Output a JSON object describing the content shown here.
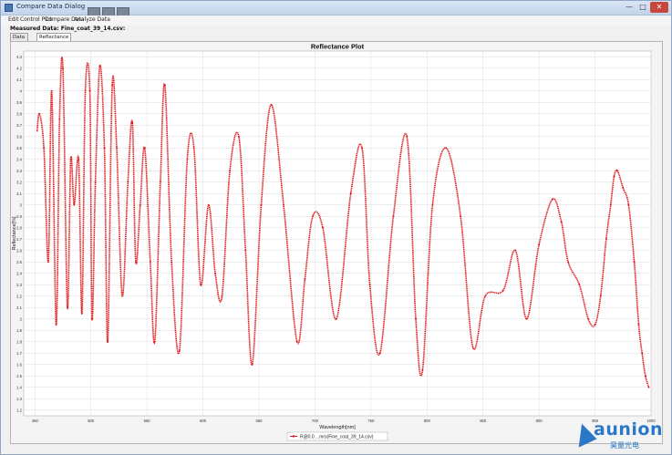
{
  "window": {
    "title": "Compare Data Dialog",
    "min_glyph": "—",
    "max_glyph": "□",
    "close_glyph": "✕"
  },
  "menu": [
    "Edit",
    "Control Plot",
    "Compare Data",
    "Analyze Data"
  ],
  "measured_label": "Measured Data: Fine_coat_39_14.csv:",
  "tabs": [
    {
      "label": "Data Table",
      "active": false
    },
    {
      "label": "Reflectance",
      "active": true
    }
  ],
  "watermark": {
    "brand": "aunion",
    "sub": "昊量光电"
  },
  "chart_data": {
    "type": "line",
    "title": "Reflectance Plot",
    "xlabel": "Wavelength[nm]",
    "ylabel": "Reflectance[%]",
    "xlim": [
      440,
      1000
    ],
    "ylim": [
      1.15,
      4.35
    ],
    "xticks": [
      "450",
      "500",
      "550",
      "600",
      "650",
      "700",
      "750",
      "800",
      "850",
      "900",
      "950",
      "1000"
    ],
    "yticks": [
      "1.2",
      "1.3",
      "1.4",
      "1.5",
      "1.6",
      "1.7",
      "1.8",
      "1.9",
      "2",
      "2.1",
      "2.2",
      "2.3",
      "2.4",
      "2.5",
      "2.6",
      "2.7",
      "2.8",
      "2.9",
      "3",
      "3.1",
      "3.2",
      "3.3",
      "3.4",
      "3.5",
      "3.6",
      "3.7",
      "3.8",
      "3.9",
      "4",
      "4.1",
      "4.2",
      "4.3"
    ],
    "grid": true,
    "legend": "bottom",
    "color": "#e01515",
    "series": [
      {
        "name": "R@0.0 ...mrs(Fine_coat_39_14.csv)",
        "x": [
          452,
          454,
          458,
          462,
          465,
          469,
          472,
          475,
          479,
          482,
          485,
          489,
          492,
          495,
          499,
          501,
          504,
          508,
          512,
          515,
          519,
          523,
          528,
          533,
          537,
          540,
          544,
          548,
          553,
          557,
          562,
          566,
          572,
          579,
          586,
          592,
          598,
          605,
          611,
          617,
          624,
          632,
          638,
          644,
          652,
          661,
          672,
          684,
          691,
          698,
          707,
          719,
          732,
          742,
          749,
          758,
          770,
          782,
          790,
          796,
          805,
          817,
          830,
          841,
          852,
          868,
          879,
          889,
          900,
          912,
          920,
          926,
          936,
          944,
          950,
          955,
          960,
          964,
          967,
          970,
          975,
          980,
          985,
          989,
          992,
          995,
          998
        ],
        "y": [
          3.65,
          3.8,
          3.5,
          2.5,
          4.0,
          1.95,
          3.75,
          4.2,
          2.1,
          3.4,
          3.0,
          3.4,
          2.05,
          4.0,
          4.0,
          2.0,
          3.2,
          4.22,
          3.5,
          1.8,
          4.05,
          3.5,
          2.2,
          3.2,
          3.72,
          2.5,
          3.0,
          3.5,
          2.5,
          1.8,
          3.2,
          4.05,
          2.5,
          1.72,
          3.4,
          3.5,
          2.3,
          3.0,
          2.4,
          2.2,
          3.3,
          3.6,
          2.6,
          1.6,
          3.0,
          3.88,
          3.0,
          1.8,
          2.35,
          2.9,
          2.8,
          2.0,
          3.1,
          3.5,
          2.3,
          1.7,
          2.9,
          3.6,
          2.0,
          1.55,
          3.0,
          3.5,
          2.9,
          1.75,
          2.2,
          2.25,
          2.6,
          2.0,
          2.65,
          3.05,
          2.85,
          2.5,
          2.3,
          2.0,
          1.95,
          2.2,
          2.7,
          3.0,
          3.25,
          3.3,
          3.15,
          3.0,
          2.5,
          1.95,
          1.7,
          1.5,
          1.4
        ]
      }
    ]
  }
}
